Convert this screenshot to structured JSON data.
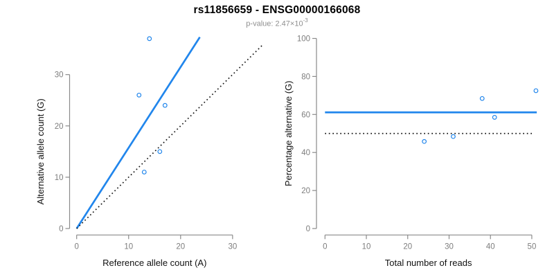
{
  "header": {
    "title": "rs11856659 - ENSG00000166068",
    "subtitle_prefix": "p-value: ",
    "subtitle_value": "2.47×10",
    "subtitle_exponent": "-3"
  },
  "colors": {
    "accent_blue": "#2186ec",
    "axis_gray": "#8a8a8a",
    "tick_label_gray": "#7d7d7d",
    "dotted_black": "#151515",
    "title_black": "#000000",
    "subtitle_gray": "#8f8f8f"
  },
  "chart_data": [
    {
      "type": "scatter",
      "name": "allele-counts-scatter",
      "xlabel": "Reference allele count (A)",
      "ylabel": "Alternative allele count (G)",
      "xlim": [
        0,
        37
      ],
      "ylim": [
        0,
        38.5
      ],
      "xticks": [
        0,
        10,
        20,
        30
      ],
      "yticks": [
        0,
        10,
        20,
        30
      ],
      "grid": false,
      "points": [
        {
          "x": 14,
          "y": 37
        },
        {
          "x": 12,
          "y": 26
        },
        {
          "x": 17,
          "y": 24
        },
        {
          "x": 16,
          "y": 15
        },
        {
          "x": 13,
          "y": 11
        }
      ],
      "lines": [
        {
          "name": "fitted-ratio-line",
          "style": "solid",
          "color_key": "accent_blue",
          "from": [
            0,
            0
          ],
          "to": [
            23.7,
            37.3
          ]
        },
        {
          "name": "identity-line",
          "style": "dotted",
          "color_key": "dotted_black",
          "from": [
            0,
            0
          ],
          "to": [
            35.8,
            35.8
          ]
        }
      ]
    },
    {
      "type": "scatter",
      "name": "percentage-vs-reads-scatter",
      "xlabel": "Total number of reads",
      "ylabel": "Percentage alternative (G)",
      "xlim": [
        0,
        51.5
      ],
      "ylim": [
        0,
        100
      ],
      "xticks": [
        0,
        10,
        20,
        30,
        40,
        50
      ],
      "yticks": [
        0,
        20,
        40,
        60,
        80,
        100
      ],
      "grid": false,
      "points": [
        {
          "x": 24,
          "y": 45.8
        },
        {
          "x": 31,
          "y": 48.4
        },
        {
          "x": 38,
          "y": 68.4
        },
        {
          "x": 41,
          "y": 58.5
        },
        {
          "x": 51,
          "y": 72.5
        }
      ],
      "lines": [
        {
          "name": "mean-percentage-line",
          "style": "solid",
          "color_key": "accent_blue",
          "from": [
            0,
            61.1
          ],
          "to": [
            51.2,
            61.1
          ]
        },
        {
          "name": "fifty-percent-line",
          "style": "dotted",
          "color_key": "dotted_black",
          "from": [
            0,
            50
          ],
          "to": [
            50,
            50
          ]
        }
      ]
    }
  ]
}
